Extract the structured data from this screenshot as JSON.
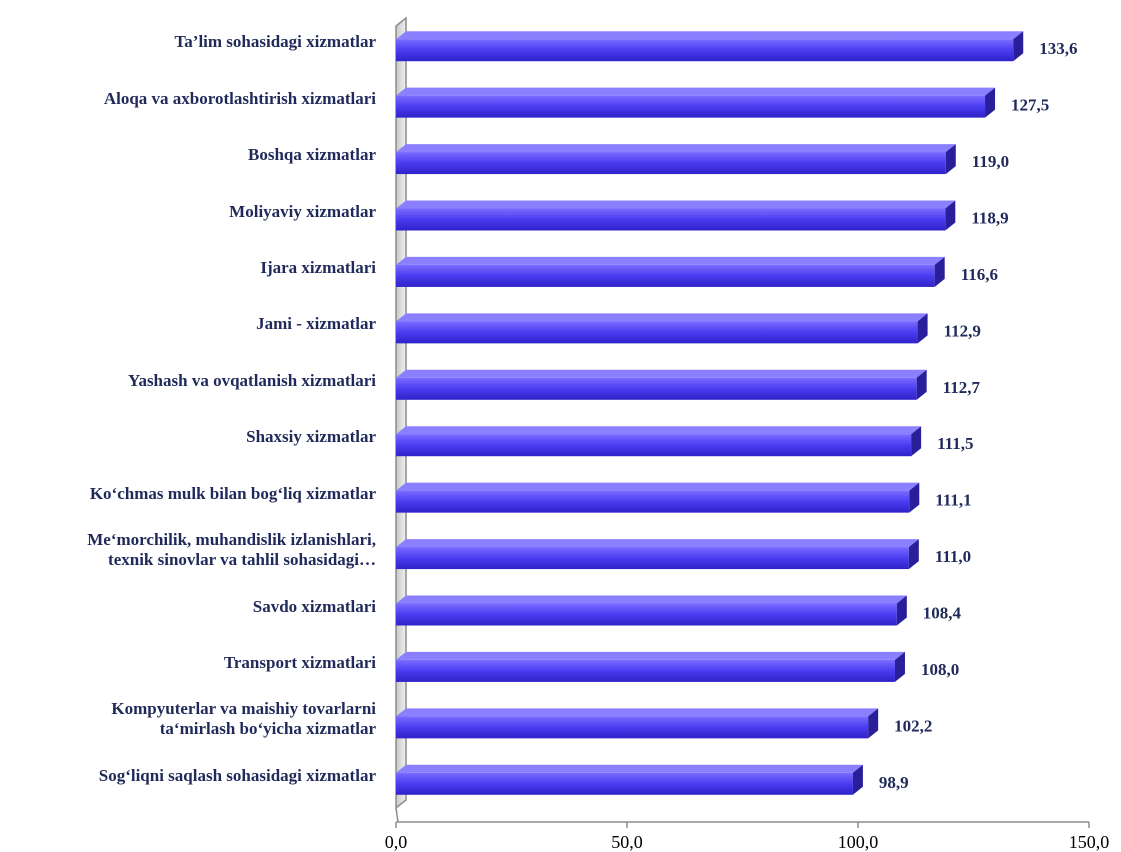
{
  "chart_data": {
    "type": "bar",
    "orientation": "horizontal",
    "categories": [
      "Ta’lim sohasidagi xizmatlar",
      "Aloqa va axborotlashtirish xizmatlari",
      "Boshqa xizmatlar",
      "Moliyaviy  xizmatlar",
      "Ijara xizmatlari",
      "Jami - xizmatlar",
      "Yashash va ovqatlanish xizmatlari",
      "Shaxsiy xizmatlar",
      "Ko‘chmas mulk bilan bog‘liq xizmatlar",
      "Me‘morchilik, muhandislik izlanishlari, texnik sinovlar va tahlil sohasidagi…",
      "Savdo xizmatlari",
      "Transport xizmatlari",
      "Kompyuterlar va maishiy tovarlarni ta‘mirlash bo‘yicha  xizmatlar",
      "Sog‘liqni saqlash sohasidagi xizmatlar"
    ],
    "category_lines": [
      [
        "Ta’lim sohasidagi xizmatlar"
      ],
      [
        "Aloqa va axborotlashtirish xizmatlari"
      ],
      [
        "Boshqa xizmatlar"
      ],
      [
        "Moliyaviy  xizmatlar"
      ],
      [
        "Ijara xizmatlari"
      ],
      [
        "Jami - xizmatlar"
      ],
      [
        "Yashash va ovqatlanish xizmatlari"
      ],
      [
        "Shaxsiy xizmatlar"
      ],
      [
        "Ko‘chmas mulk bilan bog‘liq xizmatlar"
      ],
      [
        "Me‘morchilik, muhandislik izlanishlari,",
        "texnik sinovlar va tahlil sohasidagi…"
      ],
      [
        "Savdo xizmatlari"
      ],
      [
        "Transport xizmatlari"
      ],
      [
        "Kompyuterlar va maishiy tovarlarni",
        "ta‘mirlash bo‘yicha  xizmatlar"
      ],
      [
        "Sog‘liqni saqlash sohasidagi xizmatlar"
      ]
    ],
    "values": [
      133.6,
      127.5,
      119.0,
      118.9,
      116.6,
      112.9,
      112.7,
      111.5,
      111.1,
      111.0,
      108.4,
      108.0,
      102.2,
      98.9
    ],
    "value_labels": [
      "133,6",
      "127,5",
      "119,0",
      "118,9",
      "116,6",
      "112,9",
      "112,7",
      "111,5",
      "111,1",
      "111,0",
      "108,4",
      "108,0",
      "102,2",
      "98,9"
    ],
    "x_ticks": [
      0,
      50,
      100,
      150
    ],
    "x_tick_labels": [
      "0,0",
      "50,0",
      "100,0",
      "150,0"
    ],
    "xlim": [
      0,
      150
    ],
    "grid": false,
    "legend": "none",
    "colors": {
      "bar_front": "#5a4cf0",
      "bar_top": "#8a80ff",
      "bar_side": "#2a1f9a",
      "label_text": "#1f2a5a",
      "wall": "#d9d9d9"
    }
  }
}
